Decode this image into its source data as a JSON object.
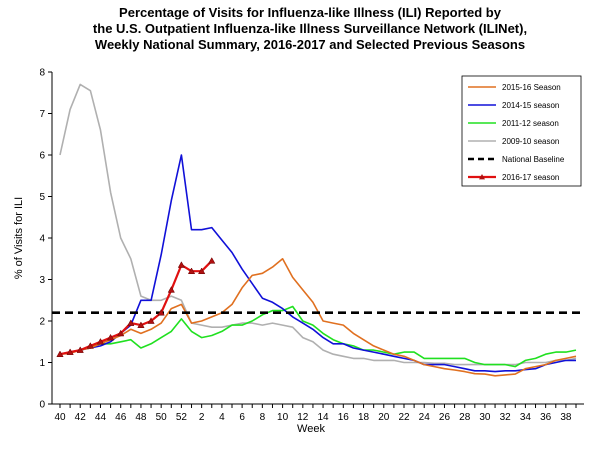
{
  "chart_data": {
    "type": "line",
    "title_lines": [
      "Percentage of Visits for Influenza-like Illness (ILI) Reported by",
      "the U.S. Outpatient Influenza-like Illness Surveillance Network (ILINet),",
      "Weekly National Summary, 2016-2017 and Selected Previous Seasons"
    ],
    "xlabel": "Week",
    "ylabel": "% of Visits for ILI",
    "ylim": [
      0,
      8
    ],
    "y_ticks": [
      "0",
      "1",
      "2",
      "3",
      "4",
      "5",
      "6",
      "7",
      "8"
    ],
    "x_tick_labels": [
      "40",
      "42",
      "44",
      "46",
      "48",
      "50",
      "52",
      "2",
      "4",
      "6",
      "8",
      "10",
      "12",
      "14",
      "16",
      "18",
      "20",
      "22",
      "24",
      "26",
      "28",
      "30",
      "32",
      "34",
      "36",
      "38"
    ],
    "weeks": [
      "40",
      "41",
      "42",
      "43",
      "44",
      "45",
      "46",
      "47",
      "48",
      "49",
      "50",
      "51",
      "52",
      "1",
      "2",
      "3",
      "4",
      "5",
      "6",
      "7",
      "8",
      "9",
      "10",
      "11",
      "12",
      "13",
      "14",
      "15",
      "16",
      "17",
      "18",
      "19",
      "20",
      "21",
      "22",
      "23",
      "24",
      "25",
      "26",
      "27",
      "28",
      "29",
      "30",
      "31",
      "32",
      "33",
      "34",
      "35",
      "36",
      "37",
      "38",
      "39"
    ],
    "grid": false,
    "legend_position": "top-right",
    "baseline": {
      "name": "National Baseline",
      "value": 2.2,
      "color": "#000000"
    },
    "series": [
      {
        "name": "2015-16 Season",
        "color": "#E07020",
        "values": [
          1.2,
          1.22,
          1.3,
          1.35,
          1.45,
          1.55,
          1.65,
          1.8,
          1.7,
          1.8,
          1.95,
          2.3,
          2.4,
          1.95,
          2.0,
          2.1,
          2.2,
          2.4,
          2.8,
          3.1,
          3.15,
          3.3,
          3.5,
          3.05,
          2.75,
          2.45,
          2.0,
          1.95,
          1.9,
          1.7,
          1.55,
          1.4,
          1.3,
          1.2,
          1.15,
          1.05,
          0.95,
          0.9,
          0.85,
          0.82,
          0.78,
          0.73,
          0.72,
          0.68,
          0.7,
          0.72,
          0.85,
          0.9,
          0.95,
          1.05,
          1.1,
          1.15
        ]
      },
      {
        "name": "2014-15 season",
        "color": "#1010D8",
        "values": [
          1.2,
          1.25,
          1.3,
          1.35,
          1.4,
          1.5,
          1.7,
          1.9,
          2.5,
          2.5,
          3.6,
          4.9,
          6.0,
          4.2,
          4.2,
          4.25,
          3.95,
          3.65,
          3.25,
          2.9,
          2.55,
          2.45,
          2.3,
          2.1,
          1.95,
          1.8,
          1.6,
          1.45,
          1.45,
          1.35,
          1.3,
          1.25,
          1.2,
          1.15,
          1.1,
          1.05,
          0.95,
          0.95,
          0.95,
          0.9,
          0.85,
          0.8,
          0.8,
          0.78,
          0.8,
          0.8,
          0.83,
          0.85,
          0.95,
          1.0,
          1.05,
          1.05
        ]
      },
      {
        "name": "2011-12 season",
        "color": "#20E020",
        "values": [
          1.2,
          1.25,
          1.3,
          1.4,
          1.45,
          1.45,
          1.5,
          1.55,
          1.35,
          1.45,
          1.6,
          1.75,
          2.05,
          1.75,
          1.6,
          1.65,
          1.75,
          1.9,
          1.9,
          2.0,
          2.15,
          2.25,
          2.25,
          2.35,
          2.0,
          1.9,
          1.7,
          1.55,
          1.45,
          1.4,
          1.3,
          1.3,
          1.25,
          1.2,
          1.25,
          1.25,
          1.1,
          1.1,
          1.1,
          1.1,
          1.1,
          1.0,
          0.95,
          0.95,
          0.95,
          0.9,
          1.05,
          1.1,
          1.2,
          1.25,
          1.25,
          1.3
        ]
      },
      {
        "name": "2009-10 season",
        "color": "#B0B0B0",
        "values": [
          6.0,
          7.1,
          7.7,
          7.55,
          6.6,
          5.1,
          4.0,
          3.5,
          2.6,
          2.5,
          2.5,
          2.6,
          2.5,
          1.95,
          1.9,
          1.85,
          1.85,
          1.9,
          1.95,
          1.95,
          1.9,
          1.95,
          1.9,
          1.85,
          1.6,
          1.5,
          1.3,
          1.2,
          1.15,
          1.1,
          1.1,
          1.05,
          1.05,
          1.05,
          1.0,
          1.0,
          1.0,
          0.98,
          0.98,
          0.95,
          0.95,
          0.95,
          0.95,
          0.95,
          0.95,
          0.95,
          1.0,
          1.0,
          1.0,
          1.05,
          1.05,
          1.1
        ]
      },
      {
        "name": "2016-17 season",
        "color": "#E01010",
        "marker_color": "#B01010",
        "values": [
          1.2,
          1.25,
          1.3,
          1.4,
          1.5,
          1.6,
          1.7,
          1.95,
          1.9,
          2.0,
          2.2,
          2.75,
          3.35,
          3.2,
          3.2,
          3.45
        ]
      }
    ]
  }
}
